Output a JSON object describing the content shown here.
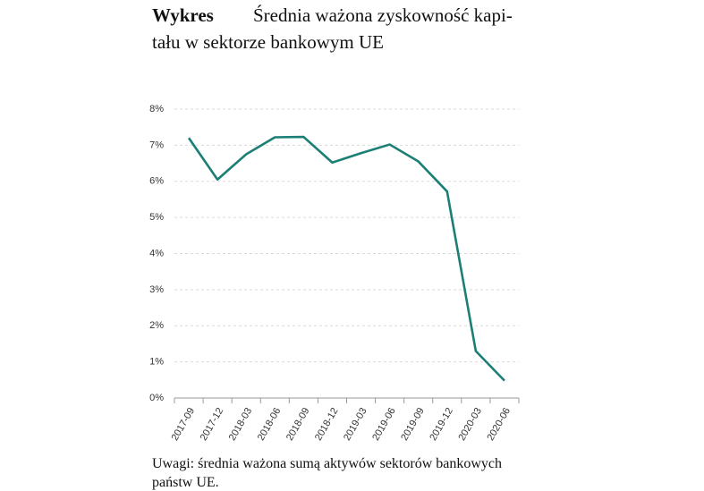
{
  "chart_data": {
    "type": "line",
    "title_label": "Wykres",
    "title_lines": [
      "Średnia ważona zyskowność kapi-",
      "tału w sektorze bankowym UE"
    ],
    "note_lines": [
      "Uwagi: średnia ważona sumą aktywów sektorów bankowych",
      "państw UE."
    ],
    "categories": [
      "2017-09",
      "2017-12",
      "2018-03",
      "2018-06",
      "2018-09",
      "2018-12",
      "2019-03",
      "2019-06",
      "2019-09",
      "2019-12",
      "2020-03",
      "2020-06"
    ],
    "values": [
      7.2,
      6.05,
      6.75,
      7.22,
      7.23,
      6.52,
      6.78,
      7.02,
      6.55,
      5.72,
      1.3,
      0.48
    ],
    "color": "#1b7f75",
    "ylim": [
      0,
      8
    ],
    "yticks": [
      {
        "value": 0,
        "label": "0%"
      },
      {
        "value": 1,
        "label": "1%"
      },
      {
        "value": 2,
        "label": "2%"
      },
      {
        "value": 3,
        "label": "3%"
      },
      {
        "value": 4,
        "label": "4%"
      },
      {
        "value": 5,
        "label": "5%"
      },
      {
        "value": 6,
        "label": "6%"
      },
      {
        "value": 7,
        "label": "7%"
      },
      {
        "value": 8,
        "label": "8%"
      }
    ],
    "grid": true
  }
}
